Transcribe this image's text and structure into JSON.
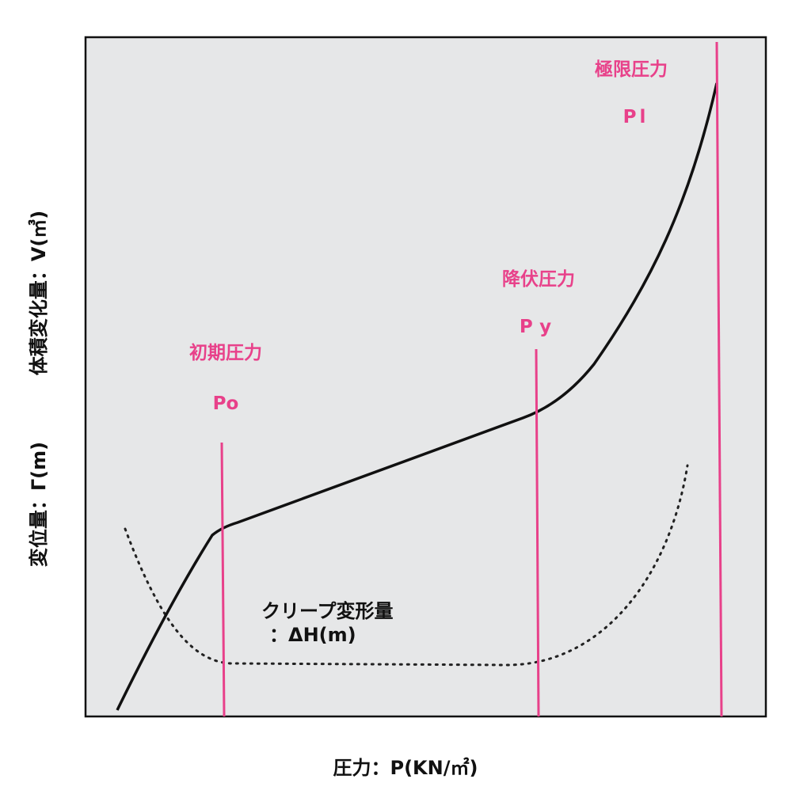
{
  "axes": {
    "x_label": "圧力：P(KN/㎡)",
    "y_labels": [
      "変位量：Γ(m)",
      "体積変化量：V(㎥)"
    ]
  },
  "markers": [
    {
      "label": "初期圧力",
      "symbol": "Po"
    },
    {
      "label": "降伏圧力",
      "symbol": "Py"
    },
    {
      "label": "極限圧力",
      "symbol": "Pl"
    }
  ],
  "creep": {
    "label": "クリープ変形量",
    "unit": "：ΔH(m)"
  }
}
